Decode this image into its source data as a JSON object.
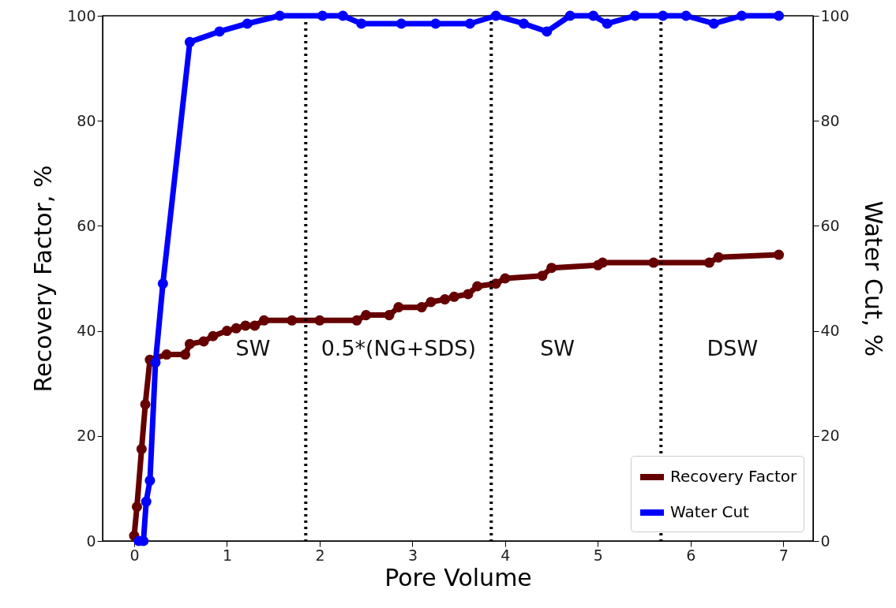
{
  "chart_data": {
    "type": "line",
    "xlabel": "Pore Volume",
    "ylabel": "Recovery Factor, %",
    "y2label": "Water Cut, %",
    "xlim": [
      -0.34,
      7.32
    ],
    "xticks": [
      {
        "value": 0,
        "label": "0"
      },
      {
        "value": 1,
        "label": "1"
      },
      {
        "value": 2,
        "label": "2"
      },
      {
        "value": 3,
        "label": "3"
      },
      {
        "value": 4,
        "label": "4"
      },
      {
        "value": 5,
        "label": "5"
      },
      {
        "value": 6,
        "label": "6"
      },
      {
        "value": 7,
        "label": "7"
      }
    ],
    "ylim": [
      0,
      100
    ],
    "yticks": [
      0,
      20,
      40,
      60,
      80,
      100
    ],
    "y2lim": [
      0,
      100
    ],
    "y2ticks": [
      0,
      20,
      40,
      60,
      80,
      100
    ],
    "series": [
      {
        "name": "Recovery Factor",
        "color": "#660000",
        "x": [
          0,
          0.03,
          0.08,
          0.12,
          0.17,
          0.35,
          0.55,
          0.6,
          0.75,
          0.85,
          1.0,
          1.1,
          1.2,
          1.3,
          1.4,
          1.7,
          2.0,
          2.4,
          2.5,
          2.75,
          2.85,
          3.1,
          3.2,
          3.35,
          3.45,
          3.6,
          3.7,
          3.9,
          4.0,
          4.4,
          4.5,
          5.0,
          5.05,
          5.6,
          6.2,
          6.3,
          6.95
        ],
        "values": [
          1,
          6.5,
          17.5,
          26,
          34.5,
          35.5,
          35.5,
          37.5,
          38,
          39,
          40,
          40.5,
          41,
          41,
          42,
          42,
          42,
          42,
          43,
          43,
          44.5,
          44.5,
          45.5,
          46,
          46.5,
          47,
          48.5,
          49,
          50,
          50.5,
          52,
          52.5,
          53,
          53,
          53,
          54,
          54.5
        ]
      },
      {
        "name": "Water Cut",
        "color": "#0000ff",
        "axis": "y2",
        "x": [
          0.05,
          0.1,
          0.13,
          0.17,
          0.23,
          0.31,
          0.6,
          0.92,
          1.22,
          1.57,
          2.03,
          2.25,
          2.45,
          2.88,
          3.25,
          3.62,
          3.9,
          4.2,
          4.45,
          4.7,
          4.95,
          5.1,
          5.4,
          5.7,
          5.95,
          6.25,
          6.55,
          6.95
        ],
        "values": [
          0,
          0,
          7.5,
          11.5,
          34,
          49,
          95,
          97,
          98.5,
          100,
          100,
          100,
          98.5,
          98.5,
          98.5,
          98.5,
          100,
          98.5,
          97,
          100,
          100,
          98.5,
          100,
          100,
          100,
          98.5,
          100,
          100
        ]
      }
    ],
    "ref_lines": [
      {
        "axis": "x",
        "value": 1.85,
        "color": "#000000",
        "line_style": "dotted"
      },
      {
        "axis": "x",
        "value": 3.85,
        "color": "#000000",
        "line_style": "dotted"
      },
      {
        "axis": "x",
        "value": 5.68,
        "color": "#000000",
        "line_style": "dotted"
      }
    ],
    "annotations": [
      "SW",
      "0.5*(NG+SDS)",
      "SW",
      "DSW"
    ],
    "marker": "circle",
    "line_style": "solid",
    "legend": "bottom right",
    "grid": false
  }
}
